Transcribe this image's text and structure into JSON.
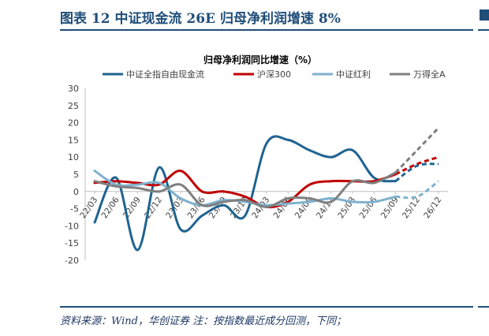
{
  "figure": {
    "title": "图表 12    中证现金流 26E 归母净利润增速 8%",
    "source": "资料来源：Wind，华创证券    注：按指数最近成分回测，下同；"
  },
  "chart_data": {
    "type": "line",
    "title": "归母净利润同比增速（%）",
    "categories": [
      "22/03",
      "22/06",
      "22/09",
      "22/12",
      "23/03",
      "23/06",
      "23/09",
      "23/12",
      "24/03",
      "24/06",
      "24/09",
      "24/12",
      "25/03",
      "25/06",
      "25/09",
      "25/12",
      "26/12"
    ],
    "ylim": [
      -20,
      30
    ],
    "yticks": [
      30,
      25,
      20,
      15,
      10,
      5,
      0,
      -5,
      -10,
      -15,
      -20
    ],
    "grid": false,
    "legend_position": "top",
    "projection_from_index": 14,
    "series": [
      {
        "name": "中证全指自由现金流",
        "color": "#1f6391",
        "values": [
          -9,
          4,
          -17,
          7,
          -11,
          -7,
          -4,
          -7,
          14,
          15,
          12,
          10,
          12,
          4,
          3,
          7.5,
          8
        ]
      },
      {
        "name": "沪深300",
        "color": "#c00000",
        "values": [
          2.5,
          3,
          2.5,
          2,
          6,
          0,
          0,
          -1.5,
          -4.5,
          -3,
          2,
          3,
          3,
          3,
          5,
          8,
          10
        ]
      },
      {
        "name": "中证红利",
        "color": "#7fb2ce",
        "values": [
          6,
          2,
          2,
          2.5,
          -2,
          -4,
          -2.5,
          -3,
          -4,
          -3.5,
          -3,
          -2,
          -3,
          -3,
          -1.5,
          -1.5,
          3
        ]
      },
      {
        "name": "万得全A",
        "color": "#7f7f7f",
        "values": [
          3,
          1.5,
          1,
          0,
          2,
          -4,
          -3,
          -2.5,
          -4.5,
          -2,
          -2,
          -3,
          3,
          2.5,
          5.5,
          12,
          18.5
        ]
      }
    ]
  }
}
